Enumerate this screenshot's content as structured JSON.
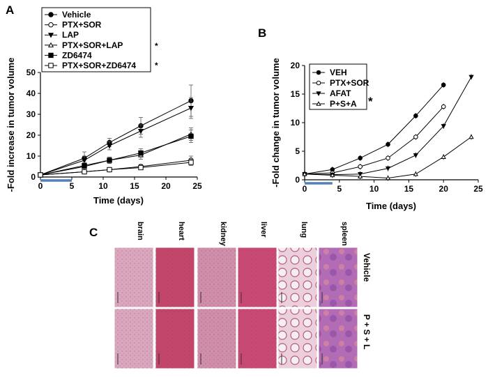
{
  "chart_data": [
    {
      "panel": "A",
      "type": "line",
      "xlabel": "Time (days)",
      "ylabel": "-Fold increase in tumor volume",
      "xlim": [
        0,
        25
      ],
      "ylim": [
        0,
        50
      ],
      "xticks": [
        "0",
        "5",
        "10",
        "15",
        "20",
        "25"
      ],
      "yticks": [
        "0",
        "10",
        "20",
        "30",
        "40",
        "50"
      ],
      "x": [
        0,
        7,
        11,
        16,
        24
      ],
      "treatment_bar": [
        0,
        5
      ],
      "significance": "*",
      "series": [
        {
          "name": "Vehicle",
          "marker": "circle-filled",
          "values": [
            1,
            9,
            16.5,
            24.5,
            36.5
          ],
          "errors": [
            0.5,
            3,
            2,
            4,
            7.5
          ]
        },
        {
          "name": "PTX+SOR",
          "marker": "circle-open",
          "values": [
            1,
            2.5,
            3.5,
            5,
            8
          ],
          "errors": [
            0.3,
            1,
            1,
            1,
            2
          ]
        },
        {
          "name": "LAP",
          "marker": "triangle-down-filled",
          "values": [
            1,
            8,
            15,
            22,
            33
          ],
          "errors": [
            0.5,
            2,
            2,
            3,
            5
          ]
        },
        {
          "name": "PTX+SOR+LAP",
          "marker": "triangle-up-open",
          "values": [
            1,
            5,
            8,
            10.5,
            20.5
          ],
          "errors": [
            0.3,
            1.5,
            1.5,
            2,
            3
          ]
        },
        {
          "name": "ZD6474",
          "marker": "square-filled",
          "values": [
            1,
            5.5,
            8,
            11.5,
            19.5
          ],
          "errors": [
            0.3,
            1.5,
            1.5,
            2,
            3
          ]
        },
        {
          "name": "PTX+SOR+ZD6474",
          "marker": "square-open",
          "values": [
            1,
            2.5,
            3.5,
            4.5,
            7
          ],
          "errors": [
            0.3,
            1,
            1,
            1,
            1.5
          ]
        }
      ]
    },
    {
      "panel": "B",
      "type": "line",
      "xlabel": "Time (days)",
      "ylabel": "-Fold change in tumor volume",
      "xlim": [
        0,
        25
      ],
      "ylim": [
        0,
        20
      ],
      "xticks": [
        "0",
        "5",
        "10",
        "15",
        "20",
        "25"
      ],
      "yticks": [
        "0",
        "5",
        "10",
        "15",
        "20"
      ],
      "treatment_bar": [
        0,
        4
      ],
      "significance": "*",
      "series": [
        {
          "name": "VEH",
          "marker": "circle-filled",
          "x": [
            0,
            4,
            8,
            12,
            16,
            20
          ],
          "values": [
            1,
            1.8,
            3.8,
            6.2,
            11.2,
            16.6
          ]
        },
        {
          "name": "PTX+SOR",
          "marker": "circle-open",
          "x": [
            0,
            4,
            8,
            12,
            16,
            20
          ],
          "values": [
            1,
            1.2,
            2.3,
            3.8,
            7.5,
            12.8
          ]
        },
        {
          "name": "AFAT",
          "marker": "triangle-down-filled",
          "x": [
            0,
            4,
            8,
            12,
            16,
            20,
            24
          ],
          "values": [
            1,
            0.9,
            1.0,
            2.0,
            4.3,
            9.4,
            18.0
          ]
        },
        {
          "name": "P+S+A",
          "marker": "triangle-up-open",
          "x": [
            0,
            4,
            8,
            12,
            16,
            20,
            24
          ],
          "values": [
            1,
            0.8,
            0.6,
            0.3,
            1.0,
            4.0,
            7.5
          ]
        }
      ]
    }
  ],
  "panel_labels": {
    "a": "A",
    "b": "B",
    "c": "C"
  },
  "panel_c": {
    "tissues": [
      "brain",
      "heart",
      "kidney",
      "liver",
      "lung",
      "spleen"
    ],
    "rows": [
      "Vehicle",
      "P + S + L"
    ]
  },
  "colors": {
    "treatment_bar": "#4f81bd",
    "brain": "#d9a8be",
    "heart": "#c2456a",
    "kidney": "#cf8fab",
    "liver": "#c84a74",
    "lung": "#e6c4d2",
    "spleen": "#b06ab4"
  }
}
